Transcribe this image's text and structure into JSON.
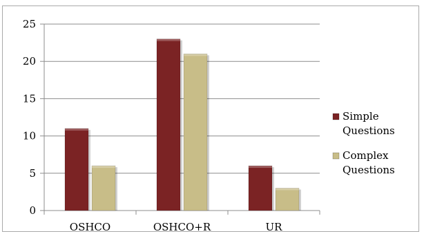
{
  "chart_data": {
    "type": "bar",
    "title": "",
    "xlabel": "",
    "ylabel": "",
    "categories": [
      "OSHCO",
      "OSHCO+R",
      "UR"
    ],
    "series": [
      {
        "name": "Simple Questions",
        "values": [
          11,
          23,
          6
        ],
        "color": "#7b2324"
      },
      {
        "name": "Complex Questions",
        "values": [
          6,
          21,
          3
        ],
        "color": "#c8bd88"
      }
    ],
    "ylim": [
      0,
      25
    ],
    "yticks": [
      "0",
      "5",
      "10",
      "15",
      "20",
      "25"
    ],
    "grid": true,
    "legend_position": "right",
    "legend_lines": [
      [
        "Simple",
        "Questions"
      ],
      [
        "Complex",
        "Questions"
      ]
    ]
  }
}
